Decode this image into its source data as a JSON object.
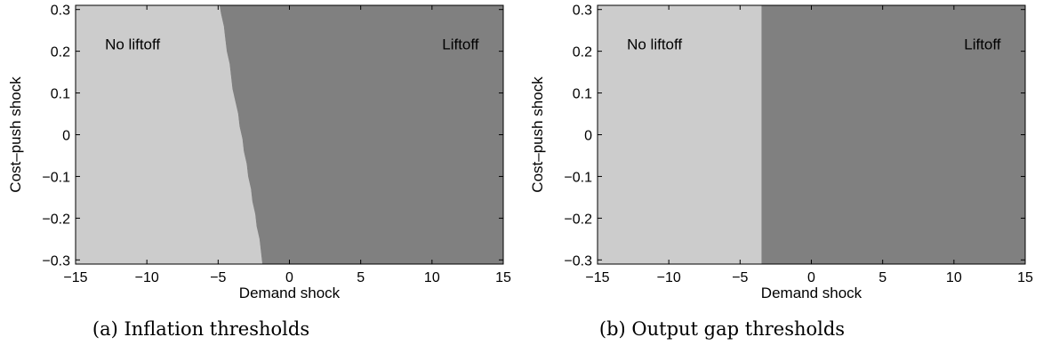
{
  "colors": {
    "no_liftoff": "#cccccc",
    "liftoff": "#808080",
    "frame": "#000000"
  },
  "chart_data": [
    {
      "type": "heatmap",
      "caption": "(a) Inflation thresholds",
      "xlabel": "Demand shock",
      "ylabel": "Cost–push shock",
      "xlim": [
        -15,
        15
      ],
      "ylim": [
        -0.31,
        0.31
      ],
      "xticks": [
        -15,
        -10,
        -5,
        0,
        5,
        10,
        15
      ],
      "yticks": [
        0.3,
        0.2,
        0.1,
        0,
        -0.1,
        -0.2,
        -0.3
      ],
      "xtick_labels": [
        "−15",
        "−10",
        "−5",
        "0",
        "5",
        "10",
        "15"
      ],
      "ytick_labels": [
        "0.3",
        "0.2",
        "0.1",
        "0",
        "−0.1",
        "−0.2",
        "−0.3"
      ],
      "regions": [
        {
          "name": "No liftoff",
          "label_x": -11,
          "label_y": 0.205,
          "side": "left"
        },
        {
          "name": "Liftoff",
          "label_x": 12,
          "label_y": 0.205,
          "side": "right"
        }
      ],
      "boundary": [
        {
          "y": 0.31,
          "x": -4.9
        },
        {
          "y": 0.29,
          "x": -4.8
        },
        {
          "y": 0.26,
          "x": -4.6
        },
        {
          "y": 0.23,
          "x": -4.5
        },
        {
          "y": 0.2,
          "x": -4.4
        },
        {
          "y": 0.17,
          "x": -4.2
        },
        {
          "y": 0.14,
          "x": -4.1
        },
        {
          "y": 0.11,
          "x": -4.0
        },
        {
          "y": 0.08,
          "x": -3.8
        },
        {
          "y": 0.05,
          "x": -3.6
        },
        {
          "y": 0.02,
          "x": -3.5
        },
        {
          "y": -0.01,
          "x": -3.3
        },
        {
          "y": -0.04,
          "x": -3.2
        },
        {
          "y": -0.07,
          "x": -3.0
        },
        {
          "y": -0.1,
          "x": -2.9
        },
        {
          "y": -0.13,
          "x": -2.7
        },
        {
          "y": -0.16,
          "x": -2.6
        },
        {
          "y": -0.19,
          "x": -2.4
        },
        {
          "y": -0.22,
          "x": -2.3
        },
        {
          "y": -0.25,
          "x": -2.1
        },
        {
          "y": -0.28,
          "x": -2.0
        },
        {
          "y": -0.31,
          "x": -1.9
        }
      ]
    },
    {
      "type": "heatmap",
      "caption": "(b) Output gap thresholds",
      "xlabel": "Demand shock",
      "ylabel": "Cost–push shock",
      "xlim": [
        -15,
        15
      ],
      "ylim": [
        -0.31,
        0.31
      ],
      "xticks": [
        -15,
        -10,
        -5,
        0,
        5,
        10,
        15
      ],
      "yticks": [
        0.3,
        0.2,
        0.1,
        0,
        -0.1,
        -0.2,
        -0.3
      ],
      "xtick_labels": [
        "−15",
        "−10",
        "−5",
        "0",
        "5",
        "10",
        "15"
      ],
      "ytick_labels": [
        "0.3",
        "0.2",
        "0.1",
        "0",
        "−0.1",
        "−0.2",
        "−0.3"
      ],
      "regions": [
        {
          "name": "No liftoff",
          "label_x": -11,
          "label_y": 0.205,
          "side": "left"
        },
        {
          "name": "Liftoff",
          "label_x": 12,
          "label_y": 0.205,
          "side": "right"
        }
      ],
      "boundary": [
        {
          "y": 0.31,
          "x": -3.5
        },
        {
          "y": -0.31,
          "x": -3.5
        }
      ]
    }
  ]
}
